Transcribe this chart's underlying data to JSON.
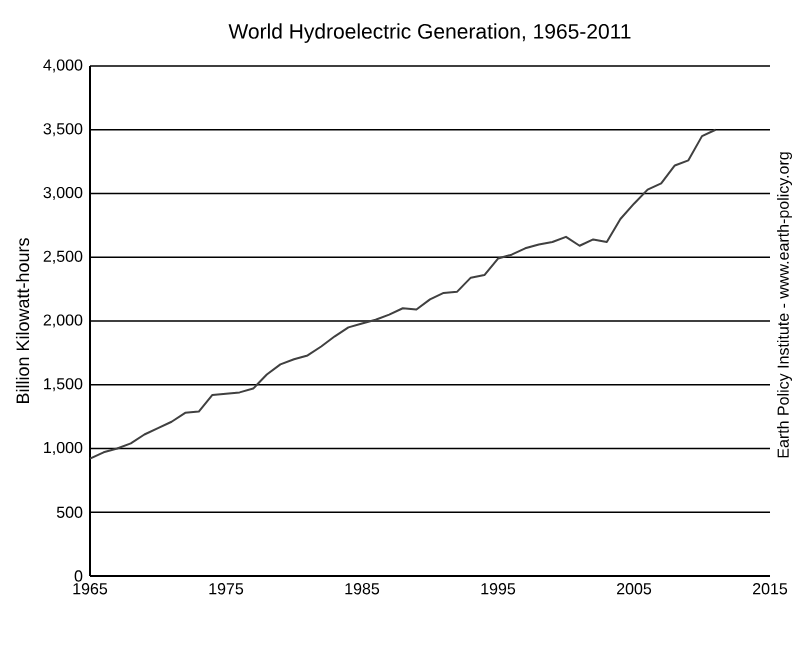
{
  "chart_data": {
    "type": "line",
    "title": "World Hydroelectric Generation, 1965-2011",
    "ylabel": "Billion Kilowatt-hours",
    "x": [
      1965,
      1966,
      1967,
      1968,
      1969,
      1970,
      1971,
      1972,
      1973,
      1974,
      1975,
      1976,
      1977,
      1978,
      1979,
      1980,
      1981,
      1982,
      1983,
      1984,
      1985,
      1986,
      1987,
      1988,
      1989,
      1990,
      1991,
      1992,
      1993,
      1994,
      1995,
      1996,
      1997,
      1998,
      1999,
      2000,
      2001,
      2002,
      2003,
      2004,
      2005,
      2006,
      2007,
      2008,
      2009,
      2010,
      2011
    ],
    "values": [
      920,
      970,
      1000,
      1040,
      1110,
      1160,
      1210,
      1280,
      1290,
      1420,
      1430,
      1440,
      1470,
      1580,
      1660,
      1700,
      1730,
      1800,
      1880,
      1950,
      1980,
      2010,
      2050,
      2100,
      2090,
      2170,
      2220,
      2230,
      2340,
      2360,
      2490,
      2520,
      2570,
      2600,
      2620,
      2660,
      2590,
      2640,
      2620,
      2800,
      2920,
      3030,
      3080,
      3220,
      3260,
      3450,
      3500
    ],
    "color": "#404040",
    "xlim": [
      1965,
      2015
    ],
    "xticks": [
      1965,
      1975,
      1985,
      1995,
      2005,
      2015
    ],
    "ylim": [
      0,
      4000
    ],
    "yticks": [
      {
        "value": 0,
        "label": "0"
      },
      {
        "value": 500,
        "label": "500"
      },
      {
        "value": 1000,
        "label": "1,000"
      },
      {
        "value": 1500,
        "label": "1,500"
      },
      {
        "value": 2000,
        "label": "2,000"
      },
      {
        "value": 2500,
        "label": "2,500"
      },
      {
        "value": 3000,
        "label": "3,000"
      },
      {
        "value": 3500,
        "label": "3,500"
      },
      {
        "value": 4000,
        "label": "4,000"
      }
    ],
    "grid": "y",
    "marker": "none",
    "line_style": "solid",
    "annotations": [
      "Earth Policy Institute - www.earth-policy.org"
    ]
  }
}
